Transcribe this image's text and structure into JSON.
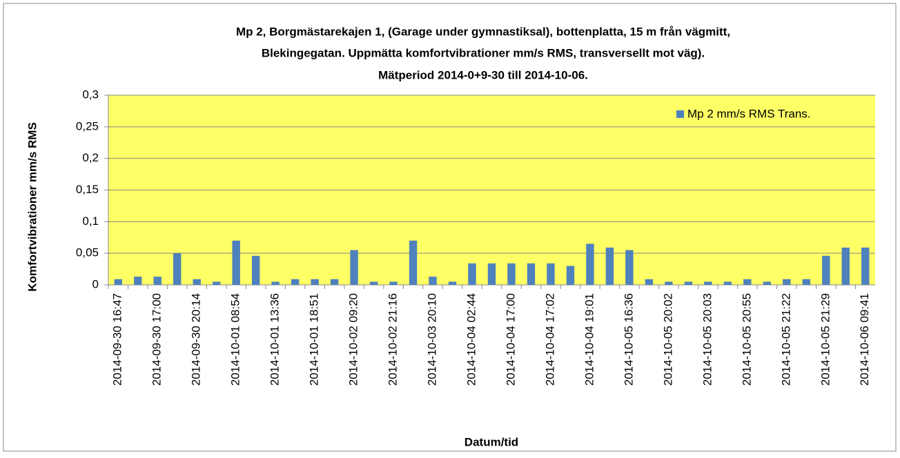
{
  "chart_data": {
    "type": "bar",
    "title": [
      "Mp 2, Borgmästarekajen 1, (Garage under gymnastiksal), bottenplatta,  15 m  från vägmitt,",
      "Blekingegatan. Uppmätta komfortvibrationer mm/s RMS, transversellt mot väg).",
      "Mätperiod 2014-0+9-30 till 2014-10-06."
    ],
    "x_label": "Datum/tid",
    "y_label": "Komfortvibrationer  mm/s RMS",
    "categories": [
      "2014-09-30 16:47",
      null,
      "2014-09-30 17:00",
      null,
      "2014-09-30 20:14",
      null,
      "2014-10-01 08:54",
      null,
      "2014-10-01 13:36",
      null,
      "2014-10-01 18:51",
      null,
      "2014-10-02 09:20",
      null,
      "2014-10-02 21:16",
      null,
      "2014-10-03 20:10",
      null,
      "2014-10-04 02:44",
      null,
      "2014-10-04 17:00",
      null,
      "2014-10-04 17:02",
      null,
      "2014-10-04 19:01",
      null,
      "2014-10-05 16:36",
      null,
      "2014-10-05 20:02",
      null,
      "2014-10-05 20:03",
      null,
      "2014-10-05 20:55",
      null,
      "2014-10-05 21:22",
      null,
      "2014-10-05 21:29",
      null,
      "2014-10-06 09:41"
    ],
    "series": [
      {
        "name": "Mp 2 mm/s RMS Trans.",
        "color": "#4f81bd",
        "values": [
          0.009,
          0.013,
          0.013,
          0.05,
          0.009,
          0.005,
          0.07,
          0.046,
          0.005,
          0.009,
          0.009,
          0.009,
          0.055,
          0.005,
          0.005,
          0.07,
          0.013,
          0.005,
          0.034,
          0.034,
          0.034,
          0.034,
          0.034,
          0.03,
          0.065,
          0.059,
          0.055,
          0.009,
          0.005,
          0.005,
          0.005,
          0.005,
          0.009,
          0.005,
          0.009,
          0.009,
          0.046,
          0.059,
          0.059
        ]
      }
    ],
    "ylim": [
      0,
      0.3
    ],
    "yticks": [
      0,
      {
        "value": 0.05,
        "label": "0,05"
      },
      {
        "value": 0.1,
        "label": "0,1"
      },
      {
        "value": 0.15,
        "label": "0,15"
      },
      {
        "value": 0.2,
        "label": "0,2"
      },
      {
        "value": 0.25,
        "label": "0,25"
      },
      {
        "value": 0.3,
        "label": "0,3"
      }
    ],
    "grid": true,
    "legend": "upper right",
    "plot_background": "#ffff66"
  }
}
